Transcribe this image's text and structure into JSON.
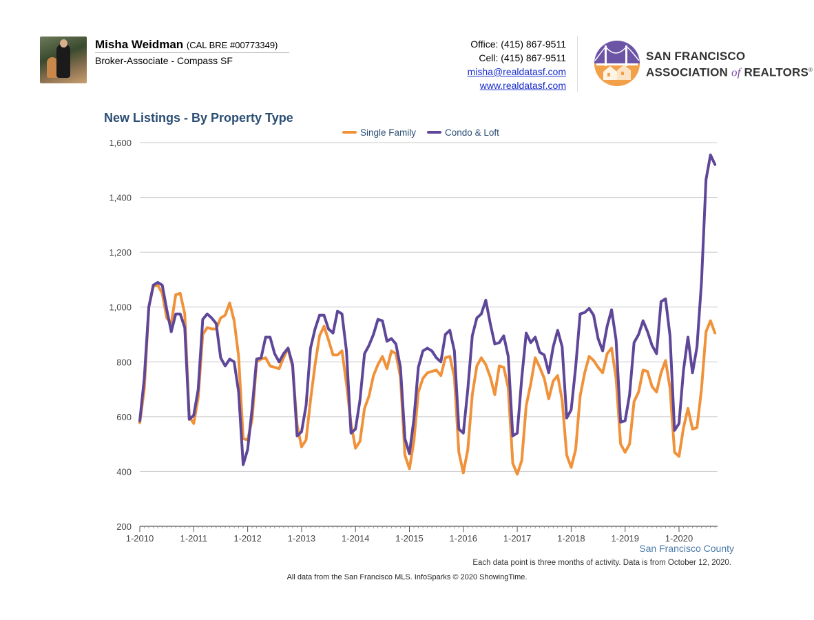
{
  "agent": {
    "name": "Misha Weidman",
    "license": "(CAL BRE #00773349)",
    "role": "Broker-Associate - Compass SF"
  },
  "contact": {
    "office": "Office: (415) 867-9511",
    "cell": "Cell: (415) 867-9511",
    "email": "misha@realdatasf.com",
    "website": "www.realdatasf.com"
  },
  "association": {
    "line1": "SAN FRANCISCO",
    "line2_prefix": "ASSOCIATION",
    "line2_of": "of",
    "line2_suffix": "REALTORS",
    "reg_mark": "®"
  },
  "chart_data": {
    "type": "line",
    "title": "New Listings - By Property Type",
    "region_label": "San Francisco County",
    "note": "Each data point is three months of activity. Data is from October 12, 2020.",
    "legend_position": "top-center",
    "grid": true,
    "ylim": [
      200,
      1600
    ],
    "yticks": [
      200,
      400,
      600,
      800,
      1000,
      1200,
      1400,
      1600
    ],
    "ytick_labels": [
      "200",
      "400",
      "600",
      "800",
      "1,000",
      "1,200",
      "1,400",
      "1,600"
    ],
    "x_start": "1-2010",
    "x_end": "9-2020",
    "xtick_labels": [
      "1-2010",
      "1-2011",
      "1-2012",
      "1-2013",
      "1-2014",
      "1-2015",
      "1-2016",
      "1-2017",
      "1-2018",
      "1-2019",
      "1-2020"
    ],
    "colors": {
      "single_family": "#f0923a",
      "condo_loft": "#5e4699"
    },
    "series": [
      {
        "name": "Single Family",
        "color": "#f0923a",
        "values": [
          578,
          700,
          1000,
          1075,
          1080,
          1050,
          960,
          940,
          1045,
          1050,
          975,
          600,
          575,
          670,
          900,
          925,
          920,
          920,
          960,
          970,
          1015,
          950,
          820,
          520,
          515,
          590,
          800,
          810,
          815,
          785,
          780,
          775,
          815,
          850,
          780,
          570,
          490,
          515,
          660,
          790,
          895,
          930,
          880,
          825,
          825,
          840,
          720,
          575,
          485,
          510,
          630,
          675,
          750,
          790,
          820,
          775,
          840,
          830,
          745,
          460,
          410,
          510,
          690,
          740,
          760,
          765,
          770,
          750,
          815,
          820,
          745,
          470,
          395,
          480,
          680,
          785,
          815,
          790,
          745,
          680,
          785,
          780,
          705,
          430,
          390,
          440,
          640,
          720,
          815,
          780,
          740,
          665,
          730,
          750,
          660,
          460,
          415,
          480,
          675,
          760,
          820,
          805,
          780,
          760,
          830,
          850,
          740,
          500,
          470,
          500,
          655,
          690,
          770,
          765,
          710,
          690,
          760,
          805,
          705,
          470,
          455,
          560,
          630,
          555,
          560,
          700,
          910,
          950,
          905
        ]
      },
      {
        "name": "Condo & Loft",
        "color": "#5e4699",
        "values": [
          585,
          740,
          1000,
          1080,
          1090,
          1080,
          990,
          910,
          975,
          975,
          925,
          590,
          605,
          700,
          955,
          975,
          960,
          940,
          815,
          785,
          810,
          800,
          690,
          425,
          480,
          630,
          810,
          815,
          890,
          890,
          830,
          800,
          830,
          850,
          790,
          530,
          545,
          640,
          850,
          920,
          970,
          970,
          920,
          905,
          985,
          975,
          840,
          540,
          555,
          660,
          830,
          860,
          900,
          955,
          950,
          875,
          885,
          865,
          780,
          520,
          465,
          590,
          780,
          840,
          850,
          840,
          815,
          800,
          900,
          915,
          840,
          555,
          540,
          700,
          895,
          960,
          975,
          1025,
          940,
          865,
          870,
          895,
          820,
          530,
          540,
          740,
          905,
          870,
          890,
          835,
          825,
          760,
          855,
          915,
          855,
          595,
          625,
          780,
          975,
          980,
          995,
          970,
          885,
          840,
          930,
          990,
          880,
          580,
          585,
          680,
          870,
          900,
          950,
          910,
          860,
          830,
          1020,
          1030,
          895,
          550,
          575,
          770,
          890,
          760,
          855,
          1090,
          1465,
          1555,
          1520
        ]
      }
    ]
  },
  "footnote": "All data from the San Francisco MLS. InfoSparks © 2020 ShowingTime."
}
